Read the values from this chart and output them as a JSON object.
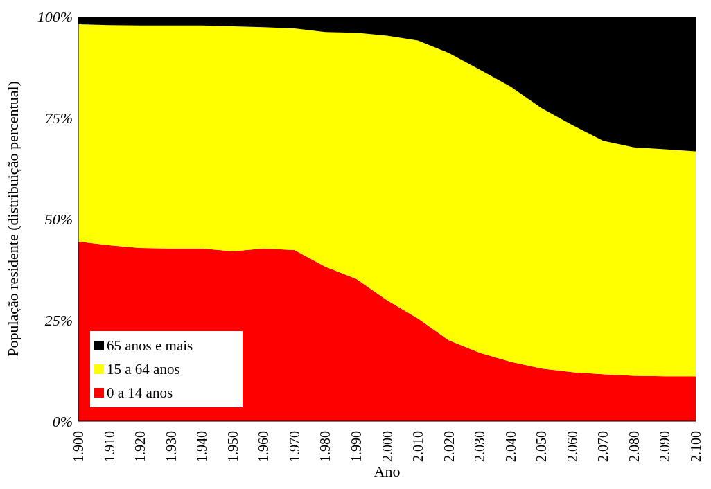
{
  "chart_data": {
    "type": "area",
    "stacked": true,
    "xlabel": "Ano",
    "ylabel": "População residente (distribuição percentual)",
    "x": [
      1900,
      1910,
      1920,
      1930,
      1940,
      1950,
      1960,
      1970,
      1980,
      1990,
      2000,
      2010,
      2020,
      2030,
      2040,
      2050,
      2060,
      2070,
      2080,
      2090,
      2100
    ],
    "series": [
      {
        "name": "0 a 14 anos",
        "color": "#ff0000",
        "values": [
          44.4,
          43.5,
          42.8,
          42.7,
          42.7,
          42.0,
          42.7,
          42.3,
          38.2,
          35.2,
          29.9,
          25.4,
          20.0,
          16.9,
          14.7,
          13.0,
          12.1,
          11.6,
          11.2,
          11.1,
          11.1
        ]
      },
      {
        "name": "15 a 64 anos",
        "color": "#ffff00",
        "values": [
          53.7,
          54.4,
          55.0,
          55.1,
          55.1,
          55.6,
          54.7,
          54.8,
          58.0,
          60.8,
          65.4,
          68.7,
          71.0,
          70.0,
          68.0,
          64.4,
          61.1,
          57.7,
          56.5,
          56.1,
          55.6
        ]
      },
      {
        "name": "65 anos e mais",
        "color": "#000000",
        "values": [
          1.9,
          2.1,
          2.2,
          2.2,
          2.2,
          2.4,
          2.6,
          2.9,
          3.8,
          4.0,
          4.7,
          5.9,
          9.0,
          13.1,
          17.3,
          22.6,
          26.8,
          30.7,
          32.3,
          32.8,
          33.3
        ]
      }
    ],
    "xlim": [
      1900,
      2100
    ],
    "xticks": [
      {
        "value": 1900,
        "label": "1.900"
      },
      {
        "value": 1910,
        "label": "1.910"
      },
      {
        "value": 1920,
        "label": "1.920"
      },
      {
        "value": 1930,
        "label": "1.930"
      },
      {
        "value": 1940,
        "label": "1.940"
      },
      {
        "value": 1950,
        "label": "1.950"
      },
      {
        "value": 1960,
        "label": "1.960"
      },
      {
        "value": 1970,
        "label": "1.970"
      },
      {
        "value": 1980,
        "label": "1.980"
      },
      {
        "value": 1990,
        "label": "1.990"
      },
      {
        "value": 2000,
        "label": "2.000"
      },
      {
        "value": 2010,
        "label": "2.010"
      },
      {
        "value": 2020,
        "label": "2.020"
      },
      {
        "value": 2030,
        "label": "2.030"
      },
      {
        "value": 2040,
        "label": "2.040"
      },
      {
        "value": 2050,
        "label": "2.050"
      },
      {
        "value": 2060,
        "label": "2.060"
      },
      {
        "value": 2070,
        "label": "2.070"
      },
      {
        "value": 2080,
        "label": "2.080"
      },
      {
        "value": 2090,
        "label": "2.090"
      },
      {
        "value": 2100,
        "label": "2.100"
      }
    ],
    "ylim": [
      0,
      100
    ],
    "yticks": [
      {
        "value": 0,
        "label": "0%"
      },
      {
        "value": 25,
        "label": "25%"
      },
      {
        "value": 50,
        "label": "50%"
      },
      {
        "value": 75,
        "label": "75%"
      },
      {
        "value": 100,
        "label": "100%"
      }
    ],
    "legend": "bottom left"
  }
}
